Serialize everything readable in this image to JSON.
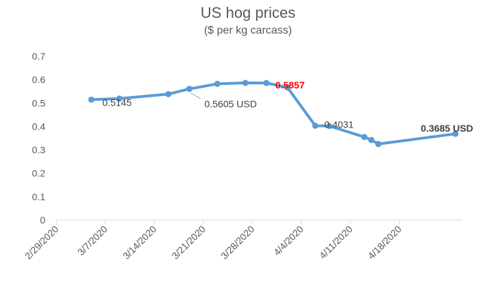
{
  "chart_data": {
    "type": "line",
    "title": "US hog prices",
    "subtitle": "($ per kg carcass)",
    "xlabel": "",
    "ylabel": "",
    "ylim": [
      0,
      0.7
    ],
    "yticks": [
      "0",
      "0.1",
      "0.2",
      "0.3",
      "0.4",
      "0.5",
      "0.6",
      "0.7"
    ],
    "xlim": [
      "2/29/2020",
      "4/27/2020"
    ],
    "xticks": [
      "2/29/2020",
      "3/7/2020",
      "3/14/2020",
      "3/21/2020",
      "3/28/2020",
      "4/4/2020",
      "4/11/2020",
      "4/18/2020"
    ],
    "grid": false,
    "series_color": "#5b9bd5",
    "series": [
      {
        "x": [
          "3/5/2020",
          "3/9/2020",
          "3/16/2020",
          "3/19/2020",
          "3/23/2020",
          "3/27/2020",
          "3/30/2020",
          "4/2/2020",
          "4/6/2020",
          "4/8/2020",
          "4/13/2020",
          "4/14/2020",
          "4/15/2020",
          "4/26/2020"
        ],
        "values": [
          0.5145,
          0.519,
          0.538,
          0.5605,
          0.582,
          0.586,
          0.5857,
          0.567,
          0.4031,
          0.402,
          0.355,
          0.342,
          0.325,
          0.3685
        ]
      }
    ],
    "annotations": [
      {
        "text": "0.5145",
        "x": "3/5/2020",
        "y": 0.5145,
        "color": "#404040",
        "bold": false
      },
      {
        "text": "0.5605 USD",
        "x": "3/19/2020",
        "y": 0.5605,
        "color": "#404040",
        "bold": false
      },
      {
        "text": "0.5857",
        "x": "3/30/2020",
        "y": 0.5857,
        "color": "#ff0000",
        "bold": true
      },
      {
        "text": "0.4031",
        "x": "4/6/2020",
        "y": 0.4031,
        "color": "#404040",
        "bold": false
      },
      {
        "text": "0.3685 USD",
        "x": "4/26/2020",
        "y": 0.3685,
        "color": "#404040",
        "bold": true
      }
    ]
  }
}
